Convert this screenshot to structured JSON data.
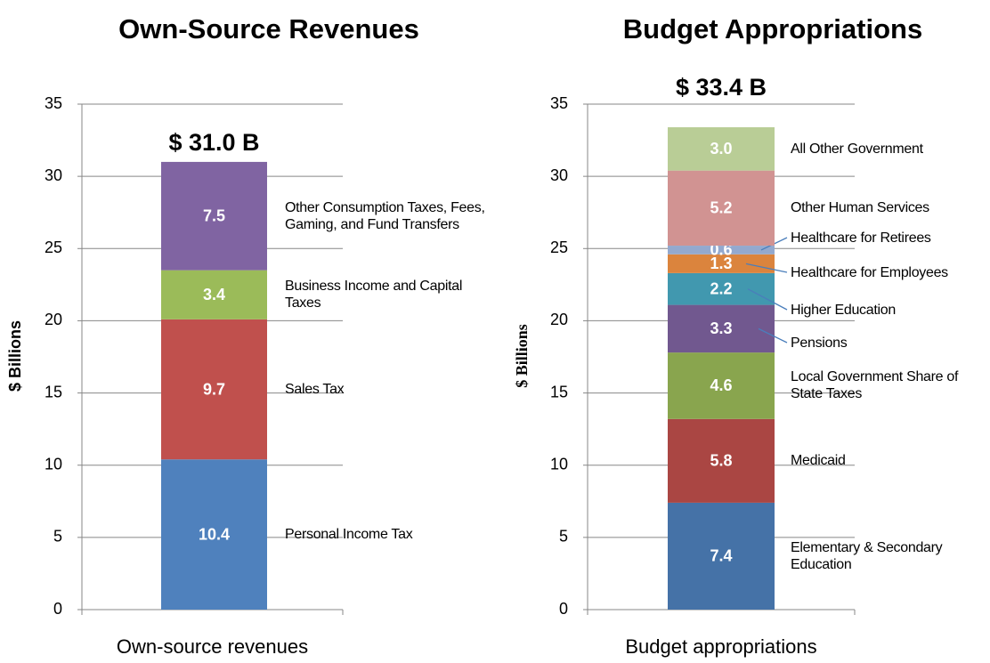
{
  "chart_data": [
    {
      "type": "stacked_bar",
      "title": "Own-Source Revenues",
      "ylabel": "$ Billions",
      "categories": [
        "Own-source revenues"
      ],
      "total_label": "$ 31.0 B",
      "ylim": [
        0,
        35
      ],
      "yticks": [
        0,
        5,
        10,
        15,
        20,
        25,
        30,
        35
      ],
      "grid": true,
      "series": [
        {
          "name": "Personal Income Tax",
          "color": "#4f81bd",
          "values": [
            10.4
          ]
        },
        {
          "name": "Sales Tax",
          "color": "#c0504d",
          "values": [
            9.7
          ]
        },
        {
          "name": "Business Income and Capital Taxes",
          "color": "#9bbb59",
          "values": [
            3.4
          ]
        },
        {
          "name": "Other Consumption Taxes, Fees, Gaming, and Fund Transfers",
          "color": "#8064a2",
          "values": [
            7.5
          ]
        }
      ]
    },
    {
      "type": "stacked_bar",
      "title": "Budget Appropriations",
      "ylabel": "$ Billions",
      "categories": [
        "Budget appropriations"
      ],
      "total_label": "$ 33.4 B",
      "ylim": [
        0,
        35
      ],
      "yticks": [
        0,
        5,
        10,
        15,
        20,
        25,
        30,
        35
      ],
      "grid": true,
      "series": [
        {
          "name": "Elementary & Secondary Education",
          "color": "#4572a7",
          "values": [
            7.4
          ]
        },
        {
          "name": "Medicaid",
          "color": "#aa4643",
          "values": [
            5.8
          ]
        },
        {
          "name": "Local Government Share of State Taxes",
          "color": "#89a54e",
          "values": [
            4.6
          ]
        },
        {
          "name": "Pensions",
          "color": "#71588f",
          "values": [
            3.3
          ]
        },
        {
          "name": "Higher Education",
          "color": "#4198af",
          "values": [
            2.2
          ]
        },
        {
          "name": "Healthcare for Employees",
          "color": "#db843d",
          "values": [
            1.3
          ]
        },
        {
          "name": "Healthcare for Retirees",
          "color": "#93a9cf",
          "values": [
            0.6
          ]
        },
        {
          "name": "Other Human Services",
          "color": "#d19392",
          "values": [
            5.2
          ]
        },
        {
          "name": "All Other Government",
          "color": "#b9cd96",
          "values": [
            3.0
          ],
          "value_labels": [
            "3.0"
          ]
        }
      ]
    }
  ]
}
